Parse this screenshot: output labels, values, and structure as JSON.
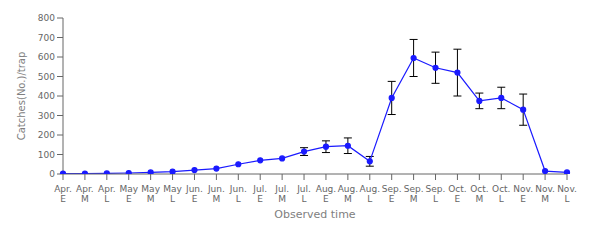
{
  "chart_data": {
    "type": "line",
    "xlabel": "Observed time",
    "ylabel": "Catches(No.)/trap",
    "categories": [
      "Apr.\nE",
      "Apr.\nM",
      "Apr.\nL",
      "May\nE",
      "May\nM",
      "May\nL",
      "Jun.\nE",
      "Jun.\nM",
      "Jun.\nL",
      "Jul.\nE",
      "Jul.\nM",
      "Jul.\nL",
      "Aug.\nE",
      "Aug.\nM",
      "Aug.\nL",
      "Sep.\nE",
      "Sep.\nM",
      "Sep.\nL",
      "Oct.\nE",
      "Oct.\nM",
      "Oct.\nL",
      "Nov.\nE",
      "Nov.\nM",
      "Nov.\nL"
    ],
    "values": [
      2,
      2,
      3,
      5,
      8,
      12,
      20,
      28,
      50,
      70,
      80,
      115,
      140,
      145,
      65,
      390,
      595,
      545,
      520,
      375,
      390,
      330,
      15,
      8
    ],
    "errors": [
      0,
      0,
      0,
      0,
      0,
      0,
      0,
      0,
      0,
      0,
      0,
      20,
      30,
      40,
      25,
      85,
      95,
      80,
      120,
      40,
      55,
      80,
      0,
      0
    ],
    "color": "#1a1aff",
    "marker": "circle",
    "ylim": [
      0,
      800
    ],
    "yticks": [
      0,
      100,
      200,
      300,
      400,
      500,
      600,
      700,
      800
    ],
    "grid": false
  }
}
